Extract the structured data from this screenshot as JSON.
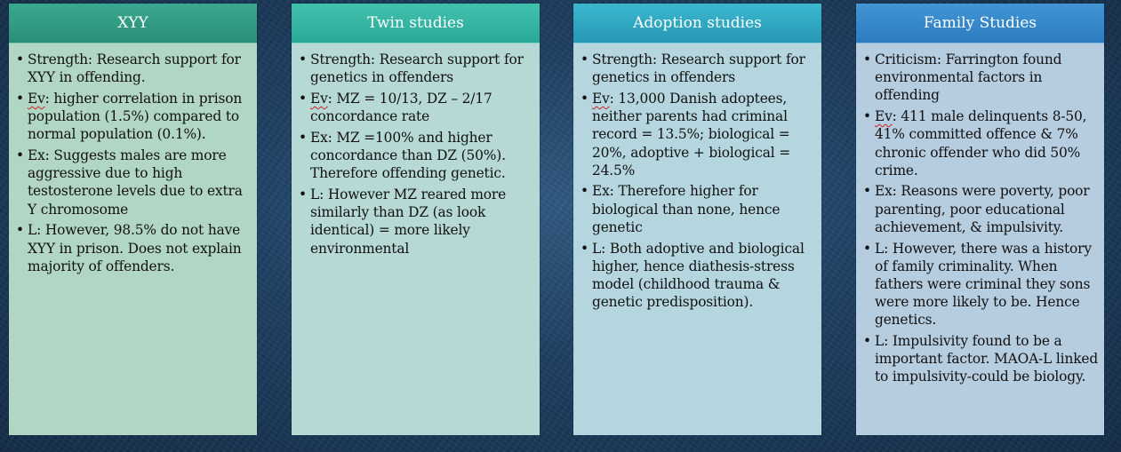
{
  "columns": [
    {
      "title": "XYY",
      "points": [
        {
          "prefix": "",
          "text": "Strength: Research support for XYY in offending."
        },
        {
          "prefix": "Ev",
          "text": ": higher correlation in prison population (1.5%) compared to normal population (0.1%)."
        },
        {
          "prefix": "",
          "text": "Ex: Suggests males are more aggressive due to high testosterone levels due to extra Y chromosome"
        },
        {
          "prefix": "",
          "text": "L: However, 98.5% do not have XYY in prison. Does not explain majority of offenders."
        }
      ]
    },
    {
      "title": "Twin studies",
      "points": [
        {
          "prefix": "",
          "text": "Strength: Research support for genetics in offenders"
        },
        {
          "prefix": "Ev",
          "text": ": MZ = 10/13, DZ – 2/17 concordance rate"
        },
        {
          "prefix": "",
          "text": "Ex: MZ =100% and higher concordance than DZ (50%). Therefore offending genetic."
        },
        {
          "prefix": "",
          "text": "L: However MZ reared more similarly than DZ (as look identical) = more likely environmental"
        }
      ]
    },
    {
      "title": "Adoption studies",
      "points": [
        {
          "prefix": "",
          "text": "Strength: Research support for genetics in offenders"
        },
        {
          "prefix": "Ev",
          "text": ": 13,000 Danish adoptees, neither parents had criminal record = 13.5%; biological = 20%, adoptive + biological = 24.5%"
        },
        {
          "prefix": "",
          "text": "Ex: Therefore higher for biological than none, hence genetic"
        },
        {
          "prefix": "",
          "text": "L: Both adoptive and biological higher, hence diathesis-stress model (childhood trauma & genetic predisposition)."
        }
      ]
    },
    {
      "title": "Family Studies",
      "points": [
        {
          "prefix": "",
          "text": "Criticism: Farrington found environmental factors in offending"
        },
        {
          "prefix": "Ev",
          "text": ": 411 male delinquents 8-50, 41% committed offence & 7% chronic offender who did 50% crime."
        },
        {
          "prefix": "",
          "text": "Ex: Reasons were poverty, poor parenting, poor educational achievement, & impulsivity."
        },
        {
          "prefix": "",
          "text": "L: However, there was a history of family criminality. When fathers were criminal they sons were more likely to be. Hence genetics."
        },
        {
          "prefix": "",
          "text": "L: Impulsivity found to be a important factor. MAOA-L linked to impulsivity-could be biology."
        }
      ]
    }
  ]
}
